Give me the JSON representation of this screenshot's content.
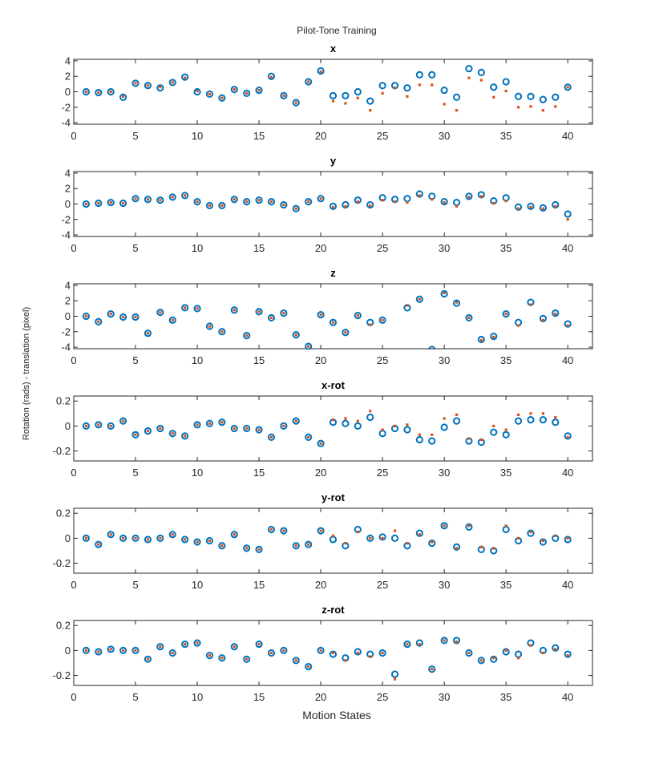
{
  "chart_data": {
    "type": "scatter",
    "title": "Pilot-Tone Training",
    "xlabel": "Motion States",
    "ylabel": "Rotation (rads) - translation (pixel)",
    "colors": {
      "series_a": "#0072BD",
      "series_b": "#D95319"
    },
    "x": [
      1,
      2,
      3,
      4,
      5,
      6,
      7,
      8,
      9,
      10,
      11,
      12,
      13,
      14,
      15,
      16,
      17,
      18,
      19,
      20,
      21,
      22,
      23,
      24,
      25,
      26,
      27,
      28,
      29,
      30,
      31,
      32,
      33,
      34,
      35,
      36,
      37,
      38,
      39,
      40
    ],
    "panels": [
      {
        "title": "x",
        "xlim": [
          0,
          42
        ],
        "ylim": [
          -4.2,
          4.2
        ],
        "xticks": [
          0,
          5,
          10,
          15,
          20,
          25,
          30,
          35,
          40
        ],
        "yticks": [
          -4,
          -2,
          0,
          2,
          4
        ],
        "ytick_labels": [
          "-4",
          "-2",
          "0",
          "2",
          "4"
        ],
        "series": [
          {
            "name": "circles",
            "marker": "circle",
            "values": [
              0,
              -0.1,
              0,
              -0.7,
              1.1,
              0.8,
              0.5,
              1.2,
              1.9,
              0,
              -0.3,
              -0.8,
              0.3,
              -0.2,
              0.2,
              2,
              -0.5,
              -1.4,
              1.3,
              2.7,
              -0.5,
              -0.5,
              0,
              -1.2,
              0.8,
              0.8,
              0.5,
              2.2,
              2.2,
              0.2,
              -0.7,
              3,
              2.5,
              0.6,
              1.3,
              -0.6,
              -0.6,
              -1,
              -0.7,
              0.6
            ]
          },
          {
            "name": "dots",
            "marker": "dot",
            "values": [
              0,
              -0.1,
              0,
              -0.6,
              1.1,
              0.8,
              0.6,
              1.2,
              1.8,
              0.1,
              -0.3,
              -0.8,
              0.3,
              -0.2,
              0.2,
              1.9,
              -0.5,
              -1.4,
              1.3,
              2.6,
              -1.2,
              -1.5,
              -0.8,
              -2.4,
              -0.2,
              0.5,
              -0.6,
              0.9,
              0.9,
              -1.6,
              -2.4,
              1.8,
              1.5,
              -0.7,
              0.1,
              -2,
              -1.9,
              -2.4,
              -1.9,
              0.6
            ]
          }
        ]
      },
      {
        "title": "y",
        "xlim": [
          0,
          42
        ],
        "ylim": [
          -4.2,
          4.2
        ],
        "xticks": [
          0,
          5,
          10,
          15,
          20,
          25,
          30,
          35,
          40
        ],
        "yticks": [
          -4,
          -2,
          0,
          2,
          4
        ],
        "ytick_labels": [
          "-4",
          "-2",
          "0",
          "2",
          "4"
        ],
        "series": [
          {
            "name": "circles",
            "marker": "circle",
            "values": [
              0,
              0.1,
              0.2,
              0.1,
              0.7,
              0.6,
              0.5,
              0.9,
              1.1,
              0.3,
              -0.2,
              -0.2,
              0.6,
              0.3,
              0.5,
              0.3,
              -0.1,
              -0.6,
              0.3,
              0.7,
              -0.3,
              -0.1,
              0.5,
              -0.1,
              0.8,
              0.6,
              0.7,
              1.3,
              1,
              0.3,
              0.2,
              1,
              1.2,
              0.4,
              0.8,
              -0.4,
              -0.3,
              -0.5,
              -0.1,
              -1.3
            ]
          },
          {
            "name": "dots",
            "marker": "dot",
            "values": [
              0,
              0.1,
              0.2,
              0.1,
              0.7,
              0.6,
              0.5,
              0.9,
              1.1,
              0.3,
              -0.2,
              -0.2,
              0.6,
              0.3,
              0.5,
              0.3,
              -0.1,
              -0.6,
              0.3,
              0.7,
              -0.4,
              -0.3,
              0.3,
              -0.2,
              0.5,
              0.3,
              0.2,
              1.1,
              0.6,
              0.2,
              -0.3,
              0.9,
              1,
              0.1,
              0.4,
              -0.6,
              -0.4,
              -0.6,
              -0.3,
              -2
            ]
          }
        ]
      },
      {
        "title": "z",
        "xlim": [
          0,
          42
        ],
        "ylim": [
          -4.2,
          4.2
        ],
        "xticks": [
          0,
          5,
          10,
          15,
          20,
          25,
          30,
          35,
          40
        ],
        "yticks": [
          -4,
          -2,
          0,
          2,
          4
        ],
        "ytick_labels": [
          "-4",
          "-2",
          "0",
          "2",
          "4"
        ],
        "series": [
          {
            "name": "circles",
            "marker": "circle",
            "values": [
              0,
              -0.7,
              0.3,
              -0.1,
              -0.1,
              -2.2,
              0.5,
              -0.5,
              1.1,
              1,
              -1.3,
              -2,
              0.8,
              -2.5,
              0.6,
              -0.2,
              0.4,
              -2.4,
              -3.9,
              0.2,
              -0.8,
              -2.1,
              0.1,
              -0.8,
              -0.5,
              null,
              1.1,
              2.2,
              -4.3,
              2.9,
              1.7,
              -0.2,
              -3,
              -2.6,
              0.3,
              -0.8,
              1.8,
              -0.3,
              0.4,
              -1
            ]
          },
          {
            "name": "dots",
            "marker": "dot",
            "values": [
              0,
              -0.7,
              0.3,
              -0.1,
              -0.1,
              -2.2,
              0.5,
              -0.5,
              1.1,
              1,
              -1.3,
              -2,
              0.8,
              -2.5,
              0.6,
              -0.2,
              0.4,
              -2.4,
              -3.9,
              0.2,
              -0.8,
              -2.1,
              0.1,
              -1.1,
              -0.5,
              null,
              1.4,
              2.2,
              -4.3,
              3,
              1.8,
              -0.2,
              -3.1,
              -2.7,
              0.3,
              -1.2,
              1.5,
              -0.5,
              0.3,
              -1.2
            ]
          }
        ]
      },
      {
        "title": "x-rot",
        "xlim": [
          0,
          42
        ],
        "ylim": [
          -0.28,
          0.24
        ],
        "xticks": [
          0,
          5,
          10,
          15,
          20,
          25,
          30,
          35,
          40
        ],
        "yticks": [
          -0.2,
          0,
          0.2
        ],
        "ytick_labels": [
          "-0.2",
          "0",
          "0.2"
        ],
        "series": [
          {
            "name": "circles",
            "marker": "circle",
            "values": [
              0,
              0.01,
              0,
              0.04,
              -0.07,
              -0.04,
              -0.02,
              -0.06,
              -0.08,
              0.01,
              0.02,
              0.03,
              -0.02,
              -0.02,
              -0.03,
              -0.09,
              0,
              0.04,
              -0.09,
              -0.14,
              0.03,
              0.02,
              0,
              0.07,
              -0.06,
              -0.02,
              -0.03,
              -0.11,
              -0.12,
              -0.01,
              0.04,
              -0.12,
              -0.13,
              -0.05,
              -0.07,
              0.04,
              0.05,
              0.05,
              0.03,
              -0.08
            ]
          },
          {
            "name": "dots",
            "marker": "dot",
            "values": [
              0,
              0.01,
              0,
              0.04,
              -0.07,
              -0.04,
              -0.02,
              -0.06,
              -0.08,
              0.01,
              0.02,
              0.03,
              -0.02,
              -0.02,
              -0.03,
              -0.09,
              0,
              0.04,
              -0.09,
              -0.14,
              0.05,
              0.06,
              0.04,
              0.12,
              -0.03,
              0,
              0.01,
              -0.07,
              -0.07,
              0.06,
              0.09,
              -0.1,
              -0.11,
              0,
              -0.03,
              0.09,
              0.1,
              0.1,
              0.07,
              -0.09
            ]
          }
        ]
      },
      {
        "title": "y-rot",
        "xlim": [
          0,
          42
        ],
        "ylim": [
          -0.28,
          0.24
        ],
        "xticks": [
          0,
          5,
          10,
          15,
          20,
          25,
          30,
          35,
          40
        ],
        "yticks": [
          -0.2,
          0,
          0.2
        ],
        "ytick_labels": [
          "-0.2",
          "0",
          "0.2"
        ],
        "series": [
          {
            "name": "circles",
            "marker": "circle",
            "values": [
              0,
              -0.05,
              0.03,
              0,
              0,
              -0.01,
              0,
              0.03,
              -0.01,
              -0.03,
              -0.02,
              -0.06,
              0.03,
              -0.08,
              -0.09,
              0.07,
              0.06,
              -0.06,
              -0.05,
              0.06,
              -0.01,
              -0.06,
              0.07,
              0,
              0.01,
              0,
              -0.06,
              0.04,
              -0.04,
              0.1,
              -0.07,
              0.09,
              -0.09,
              -0.1,
              0.07,
              -0.02,
              0.04,
              -0.03,
              0,
              -0.01
            ]
          },
          {
            "name": "dots",
            "marker": "dot",
            "values": [
              0,
              -0.05,
              0.03,
              0,
              0,
              -0.01,
              0,
              0.03,
              -0.01,
              -0.03,
              -0.02,
              -0.06,
              0.03,
              -0.08,
              -0.09,
              0.07,
              0.06,
              -0.06,
              -0.05,
              0.06,
              0.02,
              -0.04,
              0.05,
              0,
              0,
              0.06,
              -0.04,
              0.03,
              -0.03,
              0.1,
              -0.08,
              0.1,
              -0.07,
              -0.08,
              0.1,
              0,
              0.05,
              -0.02,
              0.02,
              0
            ]
          }
        ]
      },
      {
        "title": "z-rot",
        "xlim": [
          0,
          42
        ],
        "ylim": [
          -0.28,
          0.24
        ],
        "xticks": [
          0,
          5,
          10,
          15,
          20,
          25,
          30,
          35,
          40
        ],
        "yticks": [
          -0.2,
          0,
          0.2
        ],
        "ytick_labels": [
          "-0.2",
          "0",
          "0.2"
        ],
        "series": [
          {
            "name": "circles",
            "marker": "circle",
            "values": [
              0,
              -0.01,
              0.01,
              0,
              0,
              -0.07,
              0.03,
              -0.02,
              0.05,
              0.06,
              -0.04,
              -0.06,
              0.03,
              -0.07,
              0.05,
              -0.02,
              0,
              -0.08,
              -0.13,
              0,
              -0.03,
              -0.06,
              -0.01,
              -0.03,
              -0.02,
              -0.19,
              0.05,
              0.06,
              -0.15,
              0.08,
              0.08,
              -0.02,
              -0.08,
              -0.07,
              -0.01,
              -0.03,
              0.06,
              0,
              0.02,
              -0.03
            ]
          },
          {
            "name": "dots",
            "marker": "dot",
            "values": [
              0,
              -0.01,
              0.01,
              0,
              0,
              -0.07,
              0.03,
              -0.02,
              0.05,
              0.06,
              -0.04,
              -0.06,
              0.03,
              -0.07,
              0.05,
              -0.02,
              0,
              -0.08,
              -0.13,
              0,
              -0.02,
              -0.08,
              -0.02,
              -0.05,
              -0.02,
              -0.23,
              0.05,
              0.05,
              -0.15,
              0.08,
              0.07,
              -0.02,
              -0.08,
              -0.06,
              0,
              -0.06,
              0.04,
              -0.02,
              0.01,
              -0.04
            ]
          }
        ]
      }
    ]
  }
}
